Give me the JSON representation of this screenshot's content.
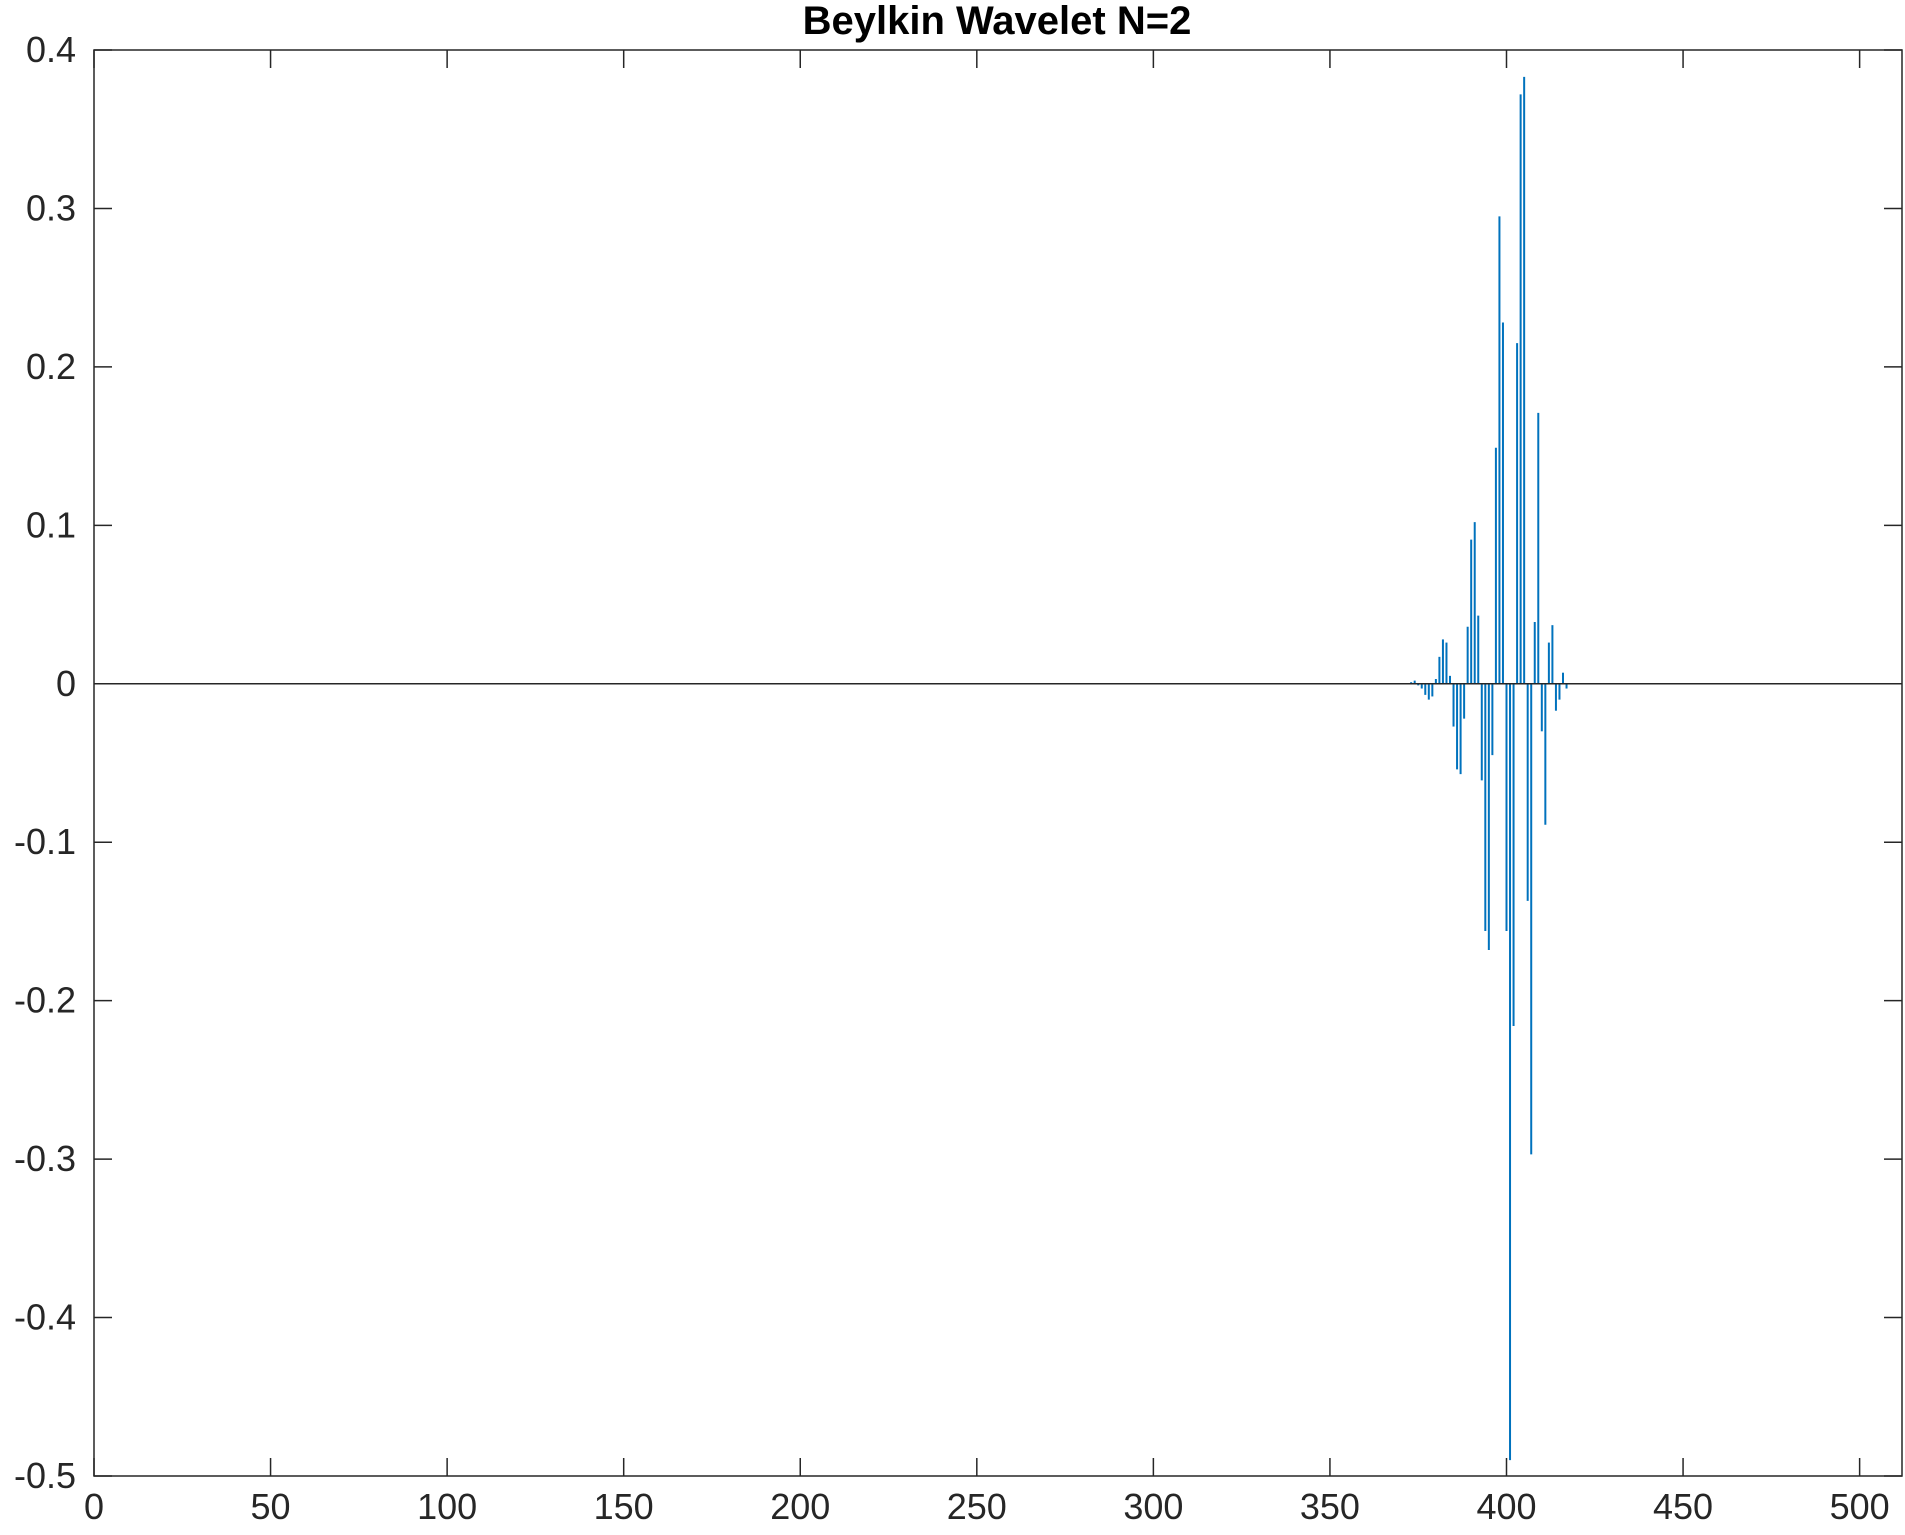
{
  "chart_data": {
    "type": "bar",
    "title": "Beylkin Wavelet N=2",
    "xlabel": "",
    "ylabel": "",
    "xlim": [
      0,
      512
    ],
    "ylim": [
      -0.5,
      0.4
    ],
    "x_ticks": [
      "0",
      "50",
      "100",
      "150",
      "200",
      "250",
      "300",
      "350",
      "400",
      "450",
      "500"
    ],
    "y_ticks": [
      "0.4",
      "0.3",
      "0.2",
      "0.1",
      "0",
      "-0.1",
      "-0.2",
      "-0.3",
      "-0.4",
      "-0.5"
    ],
    "grid": false,
    "legend": "none",
    "bar_color": "#0072bd",
    "baseline_color": "#262626",
    "x": [
      373,
      374,
      375,
      376,
      377,
      378,
      379,
      380,
      381,
      382,
      383,
      384,
      385,
      386,
      387,
      388,
      389,
      390,
      391,
      392,
      393,
      394,
      395,
      396,
      397,
      398,
      399,
      400,
      401,
      402,
      403,
      404,
      405,
      406,
      407,
      408,
      409,
      410,
      411,
      412,
      413,
      414,
      415,
      416,
      417
    ],
    "values": [
      0.001,
      0.002,
      -0.001,
      -0.003,
      -0.007,
      -0.01,
      -0.008,
      0.003,
      0.017,
      0.028,
      0.026,
      0.005,
      -0.027,
      -0.054,
      -0.057,
      -0.022,
      0.036,
      0.091,
      0.102,
      0.043,
      -0.061,
      -0.156,
      -0.168,
      -0.045,
      0.149,
      0.295,
      0.228,
      -0.156,
      -0.49,
      -0.216,
      0.215,
      0.372,
      0.383,
      -0.137,
      -0.297,
      0.039,
      0.171,
      -0.03,
      -0.089,
      0.026,
      0.037,
      -0.017,
      -0.01,
      0.007,
      -0.003
    ]
  }
}
